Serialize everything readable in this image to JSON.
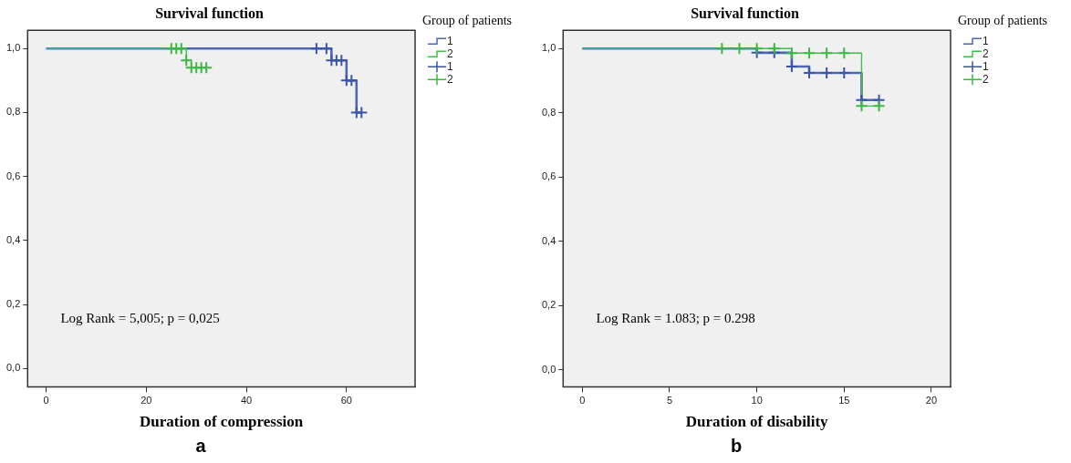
{
  "chart_data": [
    {
      "type": "step",
      "title": "Survival function",
      "xlabel": "Duration of compression",
      "legend_title": "Group of patients",
      "legend": "top right",
      "grid": false,
      "line_style": "solid",
      "annotations": [
        "Log Rank = 5,005; p = 0,025",
        "a"
      ],
      "xlim": [
        -3.7,
        73.7
      ],
      "xticks": [
        0,
        20,
        40,
        60
      ],
      "ylim": [
        -0.057,
        1.057
      ],
      "yticks": [
        {
          "value": 0,
          "label": "0,0"
        },
        {
          "value": 0.2,
          "label": "0,2"
        },
        {
          "value": 0.4,
          "label": "0,4"
        },
        {
          "value": 0.6,
          "label": "0,6"
        },
        {
          "value": 0.8,
          "label": "0,8"
        },
        {
          "value": 1,
          "label": "1,0"
        }
      ],
      "series": [
        {
          "name": "1",
          "color": "#4f66b0",
          "x": [
            0,
            57,
            60,
            62,
            63
          ],
          "values": [
            1,
            0.963,
            0.9,
            0.8,
            0.8
          ]
        },
        {
          "name": "2",
          "color": "#3fbf48",
          "x": [
            0,
            28,
            29,
            32
          ],
          "values": [
            1,
            0.963,
            0.94,
            0.94
          ]
        },
        {
          "name": "1",
          "type": "scatter",
          "marker": "cross",
          "color": "#3a55a8",
          "x": [
            54,
            56,
            57,
            58,
            59,
            60,
            61,
            62,
            63
          ],
          "values": [
            1,
            1,
            0.963,
            0.963,
            0.963,
            0.9,
            0.9,
            0.8,
            0.8
          ]
        },
        {
          "name": "2",
          "type": "scatter",
          "marker": "cross",
          "color": "#3cb843",
          "x": [
            25,
            26,
            27,
            28,
            29,
            30,
            31,
            32
          ],
          "values": [
            1,
            1,
            1,
            0.963,
            0.94,
            0.94,
            0.94,
            0.94
          ]
        }
      ]
    },
    {
      "type": "step",
      "title": "Survival function",
      "xlabel": "Duration of disability",
      "legend_title": "Group of patients",
      "legend": "top right",
      "grid": false,
      "line_style": "solid",
      "annotations": [
        "Log Rank = 1.083; p = 0.298",
        "b"
      ],
      "xlim": [
        -1.1,
        21.1
      ],
      "xticks": [
        0,
        5,
        10,
        15,
        20
      ],
      "ylim": [
        -0.053,
        1.057
      ],
      "yticks": [
        {
          "value": 0,
          "label": "0,0"
        },
        {
          "value": 0.2,
          "label": "0,2"
        },
        {
          "value": 0.4,
          "label": "0,4"
        },
        {
          "value": 0.6,
          "label": "0,6"
        },
        {
          "value": 0.8,
          "label": "0,8"
        },
        {
          "value": 1,
          "label": "1,0"
        }
      ],
      "series": [
        {
          "name": "1",
          "color": "#4f66b0",
          "x": [
            0,
            10,
            12,
            13,
            16,
            17
          ],
          "values": [
            1,
            0.987,
            0.944,
            0.924,
            0.84,
            0.84
          ]
        },
        {
          "name": "2",
          "color": "#3fbf48",
          "x": [
            0,
            12,
            16,
            17
          ],
          "values": [
            1,
            0.986,
            0.821,
            0.821
          ]
        },
        {
          "name": "1",
          "type": "scatter",
          "marker": "cross",
          "color": "#3a55a8",
          "x": [
            10,
            11,
            12,
            13,
            14,
            15,
            16,
            17
          ],
          "values": [
            0.987,
            0.987,
            0.944,
            0.924,
            0.924,
            0.924,
            0.84,
            0.84
          ]
        },
        {
          "name": "2",
          "type": "scatter",
          "marker": "cross",
          "color": "#3cb843",
          "x": [
            8,
            9,
            10,
            11,
            12,
            13,
            14,
            15,
            16,
            17
          ],
          "values": [
            1,
            1,
            1,
            1,
            0.986,
            0.986,
            0.986,
            0.986,
            0.821,
            0.821
          ]
        }
      ]
    }
  ]
}
